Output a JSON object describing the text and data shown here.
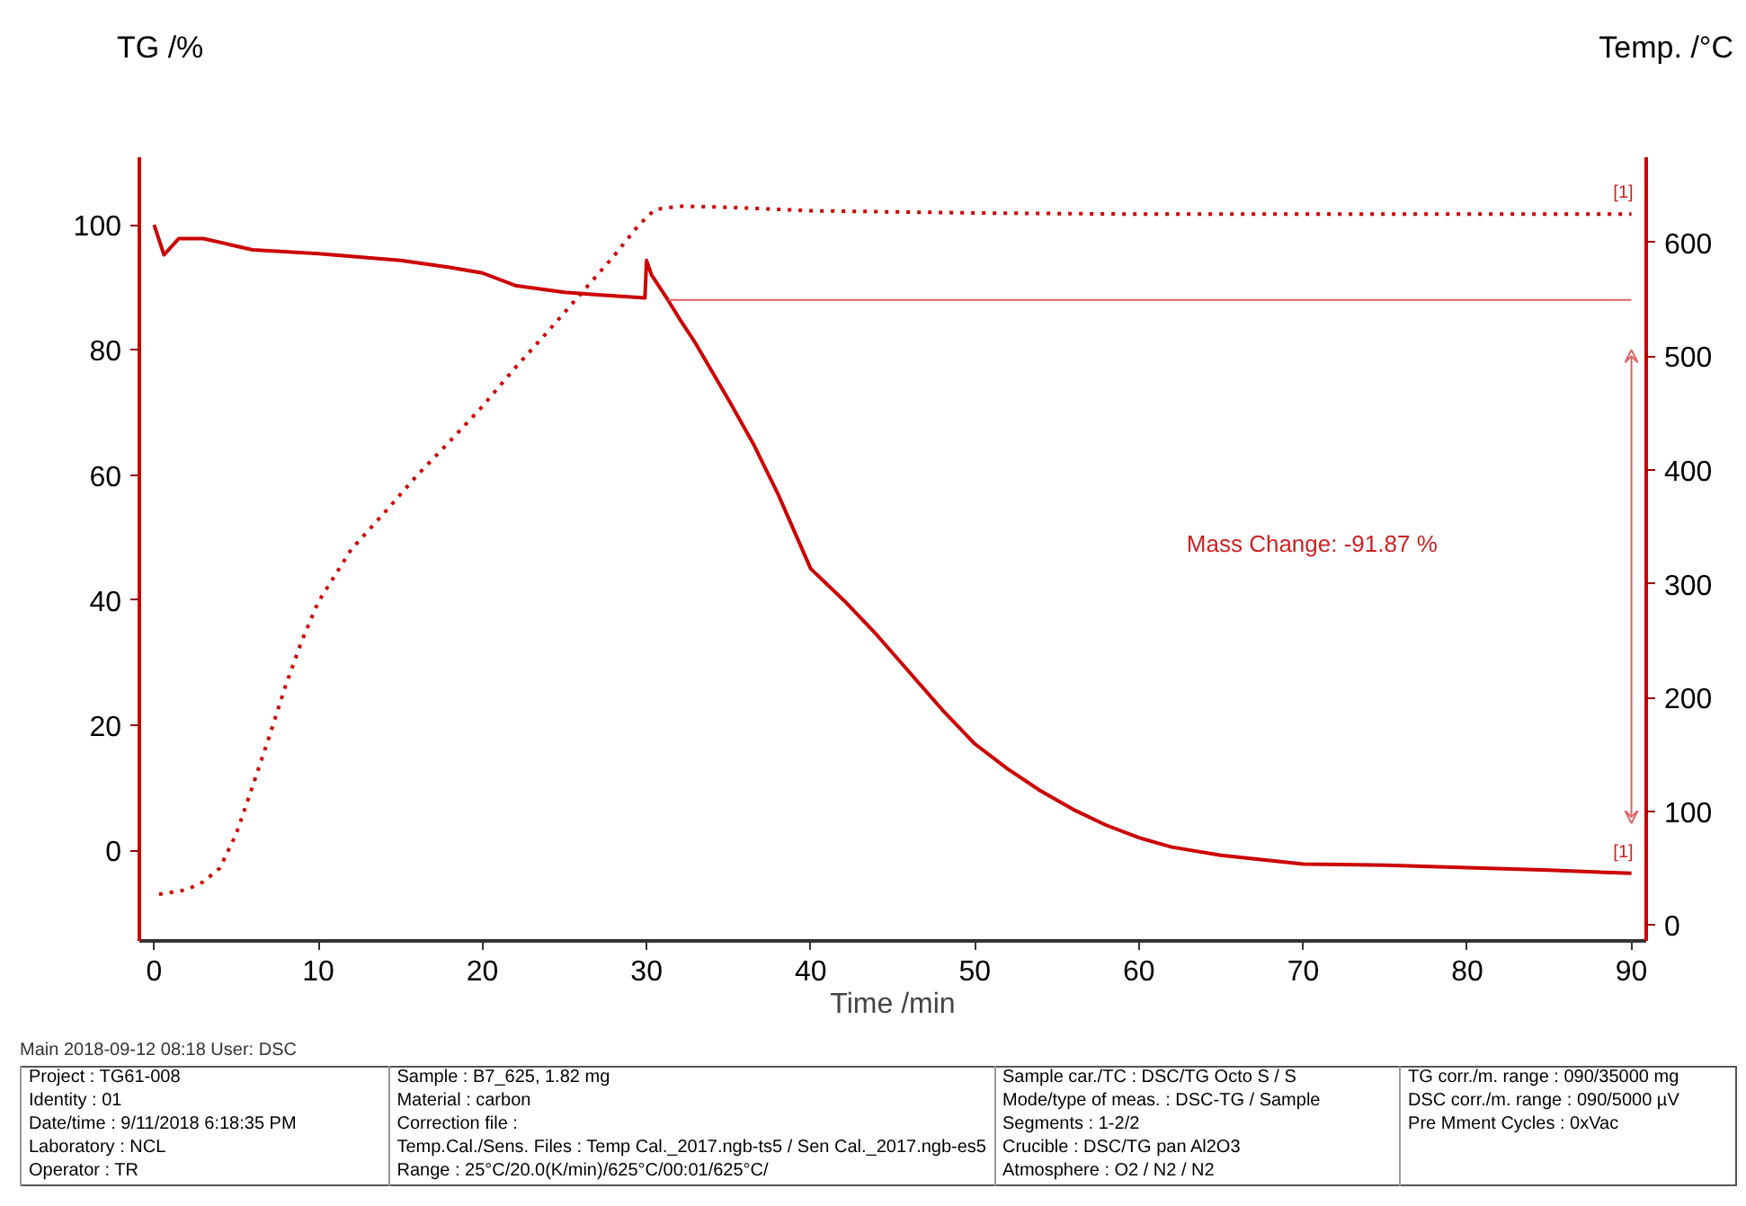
{
  "chart_data": {
    "type": "line",
    "xlabel": "Time /min",
    "ylabel": "TG /%",
    "y2label": "Temp. /°C",
    "xlim": [
      -0.9,
      90.9
    ],
    "xticks": [
      0,
      10,
      20,
      30,
      40,
      50,
      60,
      70,
      80,
      90
    ],
    "ylim": [
      -14.5,
      110.8
    ],
    "yticks": [
      0,
      20,
      40,
      60,
      80,
      100
    ],
    "y2lim": [
      -14,
      675
    ],
    "y2ticks": [
      0,
      100,
      200,
      300,
      400,
      500,
      600
    ],
    "grid": false,
    "series": [
      {
        "color": "#cc0000",
        "line_style": "solid",
        "x": [
          0,
          0.6,
          1.5,
          3,
          6,
          10,
          15,
          18,
          20,
          22,
          25,
          27,
          29.9,
          30,
          30.3,
          31.3,
          32,
          33,
          34,
          35,
          36.5,
          38,
          40,
          42,
          44,
          46,
          48,
          50,
          52,
          54,
          56,
          58,
          60,
          62,
          65,
          70,
          75,
          80,
          85,
          90
        ],
        "values": [
          100,
          95.2,
          97.8,
          97.8,
          96,
          95.4,
          94.3,
          93.2,
          92.3,
          90.3,
          89.2,
          88.8,
          88.3,
          94.3,
          92,
          88,
          85,
          81,
          76.5,
          72,
          65,
          57,
          45,
          40,
          34.5,
          28.5,
          22.5,
          17,
          13,
          9.5,
          6.5,
          4,
          2,
          0.5,
          -0.8,
          -2.2,
          -2.4,
          -2.8,
          -3.2,
          -3.7
        ]
      },
      {
        "color": "#cc0000",
        "line_style": "dotted",
        "axis": "y2",
        "x": [
          0.3,
          2,
          3,
          4,
          5,
          6,
          7,
          8,
          9,
          10,
          12,
          14,
          16,
          18,
          20,
          22,
          24,
          26,
          28,
          29.5,
          30.5,
          32,
          35,
          40,
          50,
          60,
          70,
          80,
          90
        ],
        "values": [
          27,
          31,
          38,
          50,
          80,
          122,
          165,
          210,
          250,
          284,
          330,
          362,
          395,
          425,
          456,
          490,
          522,
          555,
          588,
          615,
          629,
          632,
          631,
          628,
          626,
          625,
          625,
          625,
          625
        ]
      },
      {
        "color": "#e06060",
        "line_style": "solid",
        "x": [
          31.3,
          90
        ],
        "values": [
          88,
          88
        ]
      }
    ],
    "annotations": [
      {
        "text": "[1]",
        "x": 89.5,
        "y": 103.4
      },
      {
        "text": "[1]",
        "x": 89.5,
        "y": -2
      },
      "Mass Change: -91.87 %",
      "Main   2018-09-12 08:18   User: DSC",
      "Project :  TG61-008",
      "Identity :  01",
      "Date/time :  9/11/2018 6:18:35 PM",
      "Laboratory :  NCL",
      "Operator :  TR",
      "Sample :  B7_625, 1.82 mg",
      "Material :  carbon",
      "Correction file :",
      "Temp.Cal./Sens. Files :  Temp Cal._2017.ngb-ts5 / Sen Cal._2017.ngb-es5",
      "Range :  25°C/20.0(K/min)/625°C/00:01/625°C/",
      "Sample car./TC :  DSC/TG Octo S / S",
      "Mode/type of meas. :  DSC-TG / Sample",
      "Segments :  1-2/2",
      "Crucible :  DSC/TG pan Al2O3",
      "Atmosphere :  O2 / N2 / N2",
      "TG corr./m. range :  090/35000 mg",
      "DSC corr./m. range :  090/5000 µV",
      "Pre Mment Cycles :  0xVac"
    ]
  }
}
